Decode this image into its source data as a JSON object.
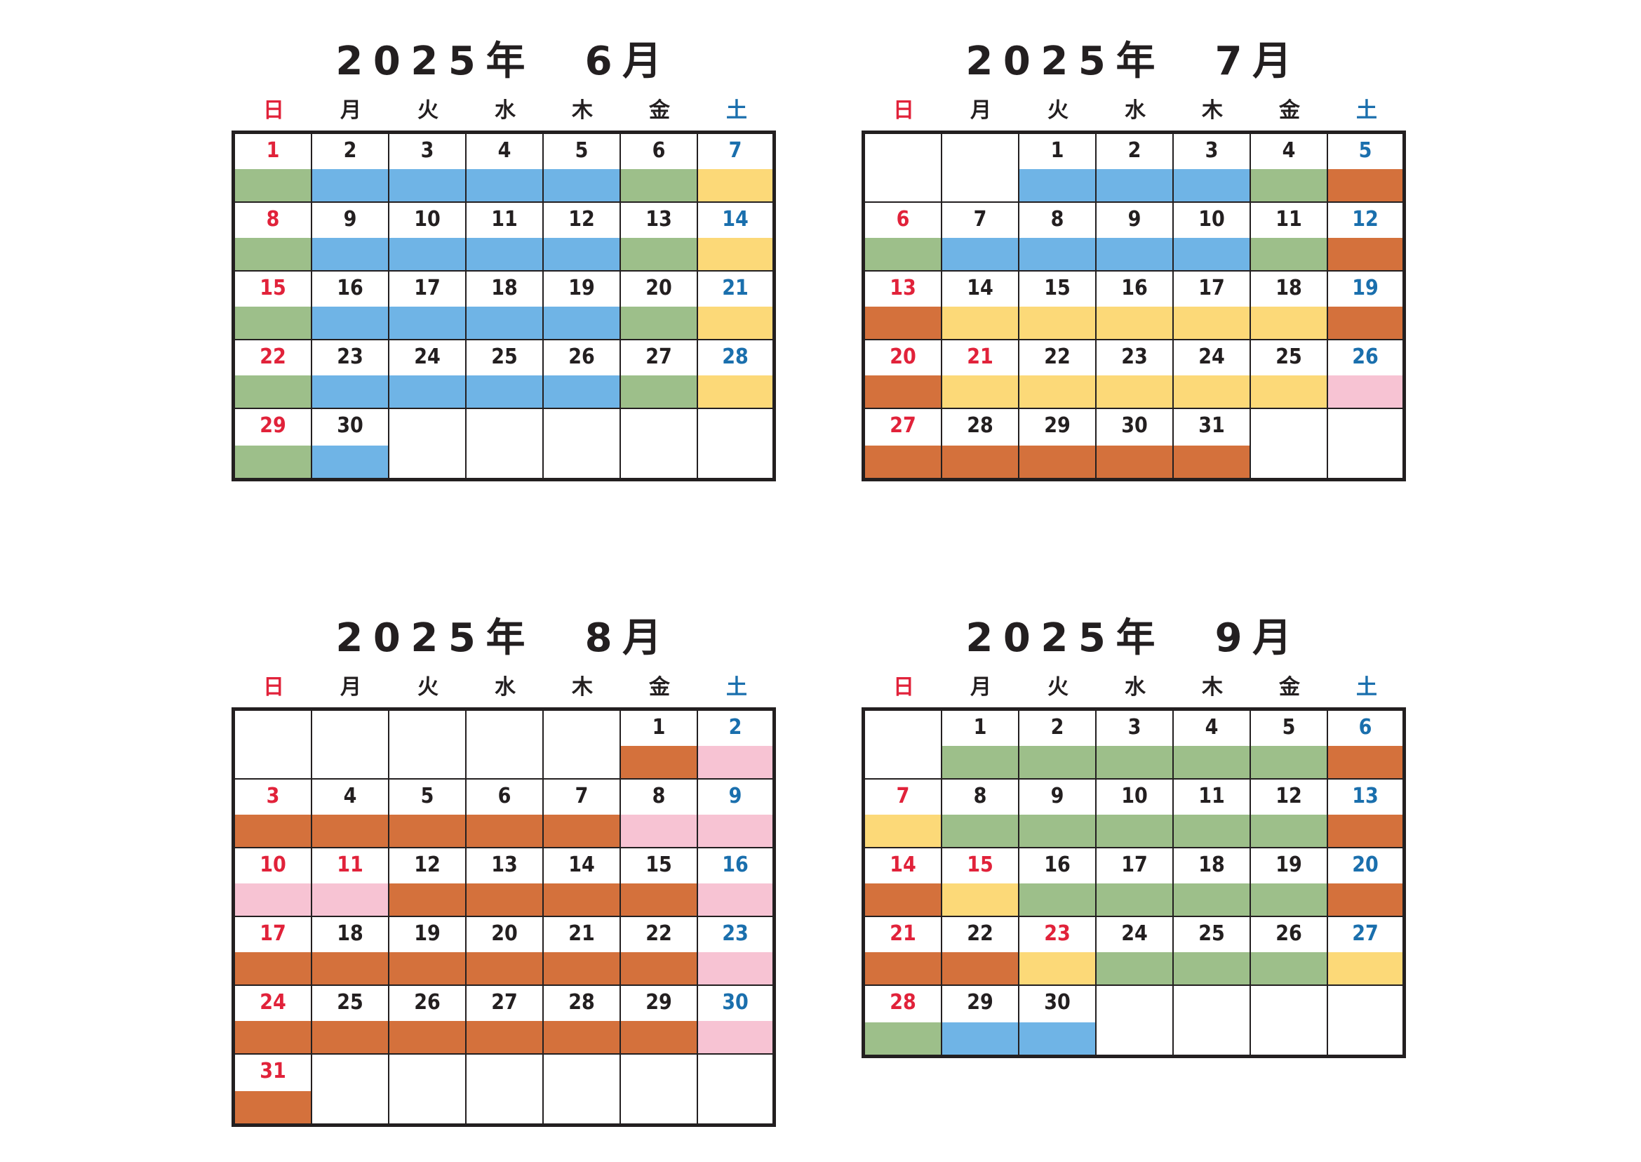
{
  "weekdays": [
    "日",
    "月",
    "火",
    "水",
    "木",
    "金",
    "土"
  ],
  "weekday_colors": [
    "#e1223a",
    "#231f20",
    "#231f20",
    "#231f20",
    "#231f20",
    "#231f20",
    "#1a6fad"
  ],
  "band_colors": {
    "blue": "#6fb4e6",
    "green": "#9dbf8a",
    "yellow": "#fcd978",
    "orange": "#d4713c",
    "pink": "#f7c3d3"
  },
  "calendars": [
    {
      "title": "2025年　6月",
      "weeks": [
        [
          [
            "1",
            "green",
            "sun"
          ],
          [
            "2",
            "blue"
          ],
          [
            "3",
            "blue"
          ],
          [
            "4",
            "blue"
          ],
          [
            "5",
            "blue"
          ],
          [
            "6",
            "green"
          ],
          [
            "7",
            "yellow",
            "sat"
          ]
        ],
        [
          [
            "8",
            "green",
            "sun"
          ],
          [
            "9",
            "blue"
          ],
          [
            "10",
            "blue"
          ],
          [
            "11",
            "blue"
          ],
          [
            "12",
            "blue"
          ],
          [
            "13",
            "green"
          ],
          [
            "14",
            "yellow",
            "sat"
          ]
        ],
        [
          [
            "15",
            "green",
            "sun"
          ],
          [
            "16",
            "blue"
          ],
          [
            "17",
            "blue"
          ],
          [
            "18",
            "blue"
          ],
          [
            "19",
            "blue"
          ],
          [
            "20",
            "green"
          ],
          [
            "21",
            "yellow",
            "sat"
          ]
        ],
        [
          [
            "22",
            "green",
            "sun"
          ],
          [
            "23",
            "blue"
          ],
          [
            "24",
            "blue"
          ],
          [
            "25",
            "blue"
          ],
          [
            "26",
            "blue"
          ],
          [
            "27",
            "green"
          ],
          [
            "28",
            "yellow",
            "sat"
          ]
        ],
        [
          [
            "29",
            "green",
            "sun"
          ],
          [
            "30",
            "blue"
          ],
          null,
          null,
          null,
          null,
          null
        ]
      ]
    },
    {
      "title": "2025年　7月",
      "weeks": [
        [
          null,
          null,
          [
            "1",
            "blue"
          ],
          [
            "2",
            "blue"
          ],
          [
            "3",
            "blue"
          ],
          [
            "4",
            "green"
          ],
          [
            "5",
            "orange",
            "sat"
          ]
        ],
        [
          [
            "6",
            "green",
            "sun"
          ],
          [
            "7",
            "blue"
          ],
          [
            "8",
            "blue"
          ],
          [
            "9",
            "blue"
          ],
          [
            "10",
            "blue"
          ],
          [
            "11",
            "green"
          ],
          [
            "12",
            "orange",
            "sat"
          ]
        ],
        [
          [
            "13",
            "orange",
            "sun"
          ],
          [
            "14",
            "yellow"
          ],
          [
            "15",
            "yellow"
          ],
          [
            "16",
            "yellow"
          ],
          [
            "17",
            "yellow"
          ],
          [
            "18",
            "yellow"
          ],
          [
            "19",
            "orange",
            "sat"
          ]
        ],
        [
          [
            "20",
            "orange",
            "sun"
          ],
          [
            "21",
            "yellow",
            "sun"
          ],
          [
            "22",
            "yellow"
          ],
          [
            "23",
            "yellow"
          ],
          [
            "24",
            "yellow"
          ],
          [
            "25",
            "yellow"
          ],
          [
            "26",
            "pink",
            "sat"
          ]
        ],
        [
          [
            "27",
            "orange",
            "sun"
          ],
          [
            "28",
            "orange"
          ],
          [
            "29",
            "orange"
          ],
          [
            "30",
            "orange"
          ],
          [
            "31",
            "orange"
          ],
          null,
          null
        ]
      ]
    },
    {
      "title": "2025年　8月",
      "weeks": [
        [
          null,
          null,
          null,
          null,
          null,
          [
            "1",
            "orange"
          ],
          [
            "2",
            "pink",
            "sat"
          ]
        ],
        [
          [
            "3",
            "orange",
            "sun"
          ],
          [
            "4",
            "orange"
          ],
          [
            "5",
            "orange"
          ],
          [
            "6",
            "orange"
          ],
          [
            "7",
            "orange"
          ],
          [
            "8",
            "pink"
          ],
          [
            "9",
            "pink",
            "sat"
          ]
        ],
        [
          [
            "10",
            "pink",
            "sun"
          ],
          [
            "11",
            "pink",
            "sun"
          ],
          [
            "12",
            "orange"
          ],
          [
            "13",
            "orange"
          ],
          [
            "14",
            "orange"
          ],
          [
            "15",
            "orange"
          ],
          [
            "16",
            "pink",
            "sat"
          ]
        ],
        [
          [
            "17",
            "orange",
            "sun"
          ],
          [
            "18",
            "orange"
          ],
          [
            "19",
            "orange"
          ],
          [
            "20",
            "orange"
          ],
          [
            "21",
            "orange"
          ],
          [
            "22",
            "orange"
          ],
          [
            "23",
            "pink",
            "sat"
          ]
        ],
        [
          [
            "24",
            "orange",
            "sun"
          ],
          [
            "25",
            "orange"
          ],
          [
            "26",
            "orange"
          ],
          [
            "27",
            "orange"
          ],
          [
            "28",
            "orange"
          ],
          [
            "29",
            "orange"
          ],
          [
            "30",
            "pink",
            "sat"
          ]
        ],
        [
          [
            "31",
            "orange",
            "sun"
          ],
          null,
          null,
          null,
          null,
          null,
          null
        ]
      ]
    },
    {
      "title": "2025年　9月",
      "weeks": [
        [
          null,
          [
            "1",
            "green"
          ],
          [
            "2",
            "green"
          ],
          [
            "3",
            "green"
          ],
          [
            "4",
            "green"
          ],
          [
            "5",
            "green"
          ],
          [
            "6",
            "orange",
            "sat"
          ]
        ],
        [
          [
            "7",
            "yellow",
            "sun"
          ],
          [
            "8",
            "green"
          ],
          [
            "9",
            "green"
          ],
          [
            "10",
            "green"
          ],
          [
            "11",
            "green"
          ],
          [
            "12",
            "green"
          ],
          [
            "13",
            "orange",
            "sat"
          ]
        ],
        [
          [
            "14",
            "orange",
            "sun"
          ],
          [
            "15",
            "yellow",
            "sun"
          ],
          [
            "16",
            "green"
          ],
          [
            "17",
            "green"
          ],
          [
            "18",
            "green"
          ],
          [
            "19",
            "green"
          ],
          [
            "20",
            "orange",
            "sat"
          ]
        ],
        [
          [
            "21",
            "orange",
            "sun"
          ],
          [
            "22",
            "orange"
          ],
          [
            "23",
            "yellow",
            "sun"
          ],
          [
            "24",
            "green"
          ],
          [
            "25",
            "green"
          ],
          [
            "26",
            "green"
          ],
          [
            "27",
            "yellow",
            "sat"
          ]
        ],
        [
          [
            "28",
            "green",
            "sun"
          ],
          [
            "29",
            "blue"
          ],
          [
            "30",
            "blue"
          ],
          null,
          null,
          null,
          null
        ]
      ]
    }
  ]
}
